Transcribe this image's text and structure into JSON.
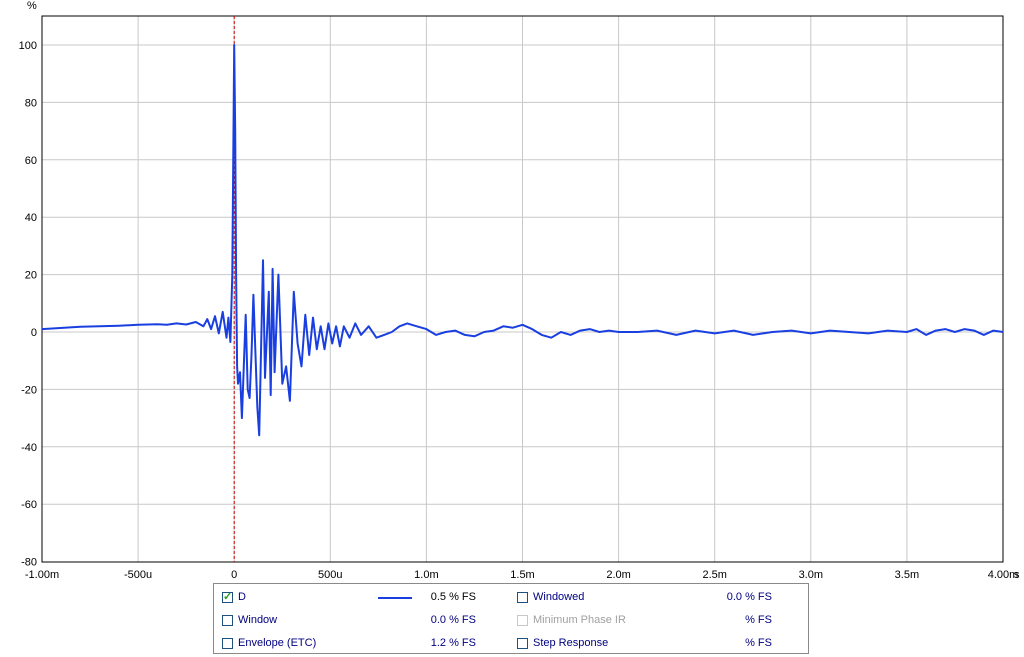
{
  "chart_data": {
    "type": "line",
    "title": "",
    "xlabel": "s",
    "ylabel": "%",
    "xlim": [
      -1.0,
      4.0
    ],
    "ylim": [
      -80,
      105
    ],
    "grid": true,
    "x_unit_label": "s",
    "y_unit_label": "%",
    "x_ticks": [
      {
        "v": -1.0,
        "label": "-1.00m"
      },
      {
        "v": -0.5,
        "label": "-500u"
      },
      {
        "v": 0.0,
        "label": "0"
      },
      {
        "v": 0.5,
        "label": "500u"
      },
      {
        "v": 1.0,
        "label": "1.0m"
      },
      {
        "v": 1.5,
        "label": "1.5m"
      },
      {
        "v": 2.0,
        "label": "2.0m"
      },
      {
        "v": 2.5,
        "label": "2.5m"
      },
      {
        "v": 3.0,
        "label": "3.0m"
      },
      {
        "v": 3.5,
        "label": "3.5m"
      },
      {
        "v": 4.0,
        "label": "4.00m"
      }
    ],
    "y_ticks": [
      100,
      80,
      60,
      40,
      20,
      0,
      -20,
      -40,
      -60,
      -80
    ],
    "marker_x": 0.0,
    "series": [
      {
        "name": "D",
        "color": "#1a3fe0",
        "x": [
          -1.0,
          -0.8,
          -0.6,
          -0.5,
          -0.4,
          -0.35,
          -0.3,
          -0.25,
          -0.2,
          -0.16,
          -0.14,
          -0.12,
          -0.1,
          -0.08,
          -0.06,
          -0.04,
          -0.03,
          -0.02,
          -0.01,
          0.0,
          0.005,
          0.01,
          0.015,
          0.02,
          0.03,
          0.04,
          0.05,
          0.06,
          0.07,
          0.08,
          0.09,
          0.1,
          0.12,
          0.13,
          0.15,
          0.16,
          0.18,
          0.19,
          0.2,
          0.21,
          0.23,
          0.25,
          0.27,
          0.29,
          0.31,
          0.33,
          0.35,
          0.37,
          0.39,
          0.41,
          0.43,
          0.45,
          0.47,
          0.49,
          0.51,
          0.53,
          0.55,
          0.57,
          0.6,
          0.63,
          0.66,
          0.7,
          0.74,
          0.78,
          0.82,
          0.86,
          0.9,
          0.95,
          1.0,
          1.05,
          1.1,
          1.15,
          1.2,
          1.25,
          1.3,
          1.35,
          1.4,
          1.45,
          1.5,
          1.55,
          1.6,
          1.65,
          1.7,
          1.75,
          1.8,
          1.85,
          1.9,
          1.95,
          2.0,
          2.1,
          2.2,
          2.3,
          2.4,
          2.5,
          2.6,
          2.7,
          2.8,
          2.9,
          3.0,
          3.1,
          3.2,
          3.3,
          3.4,
          3.5,
          3.55,
          3.6,
          3.65,
          3.7,
          3.75,
          3.8,
          3.85,
          3.9,
          3.95,
          4.0
        ],
        "y": [
          1.0,
          1.8,
          2.2,
          2.5,
          2.7,
          2.5,
          3.0,
          2.6,
          3.5,
          2.0,
          4.5,
          1.0,
          5.5,
          -0.5,
          7.0,
          -2.0,
          5.0,
          -3.5,
          20,
          100,
          70,
          20,
          -12,
          -18,
          -14,
          -30,
          -12,
          6,
          -20,
          -23,
          -8,
          13,
          -26,
          -36,
          25,
          -16,
          14,
          -22,
          22,
          -14,
          20,
          -18,
          -12,
          -24,
          14,
          -4,
          -12,
          6,
          -8,
          5,
          -6,
          2,
          -6,
          3,
          -4,
          2,
          -5,
          2,
          -2,
          3,
          -1,
          2,
          -2,
          -1,
          0,
          2,
          3,
          2,
          1,
          -1,
          0,
          0.5,
          -1,
          -1.5,
          0,
          0.5,
          2,
          1.5,
          2.5,
          1,
          -1,
          -2,
          0,
          -1,
          0.5,
          1,
          0,
          0.5,
          0,
          0,
          0.5,
          -1,
          0.5,
          -0.5,
          0.5,
          -1,
          0,
          0.5,
          -0.5,
          0.5,
          0,
          -0.5,
          0.5,
          0,
          1,
          -1,
          0.5,
          1,
          0,
          1,
          0.5,
          -1,
          0.5,
          0
        ]
      }
    ]
  },
  "legend": {
    "rows": [
      {
        "left": {
          "label": "D",
          "checked": true,
          "value": "0.5 % FS",
          "has_swatch": true,
          "disabled": false
        },
        "right": {
          "label": "Windowed",
          "checked": false,
          "value": "0.0 % FS",
          "disabled": false,
          "blue_value": true
        }
      },
      {
        "left": {
          "label": "Window",
          "checked": false,
          "value": "0.0 % FS",
          "has_swatch": false,
          "disabled": false
        },
        "right": {
          "label": "Minimum Phase IR",
          "checked": false,
          "value": "% FS",
          "disabled": true,
          "blue_value": false
        }
      },
      {
        "left": {
          "label": "Envelope (ETC)",
          "checked": false,
          "value": "1.2 % FS",
          "has_swatch": false,
          "disabled": false
        },
        "right": {
          "label": "Step Response",
          "checked": false,
          "value": "% FS",
          "disabled": false,
          "blue_value": false
        }
      }
    ],
    "colors": {
      "trace": "#1a3fe0",
      "marker": "#cc0000",
      "grid": "#c8c8c8",
      "label_blue": "#000080"
    }
  }
}
